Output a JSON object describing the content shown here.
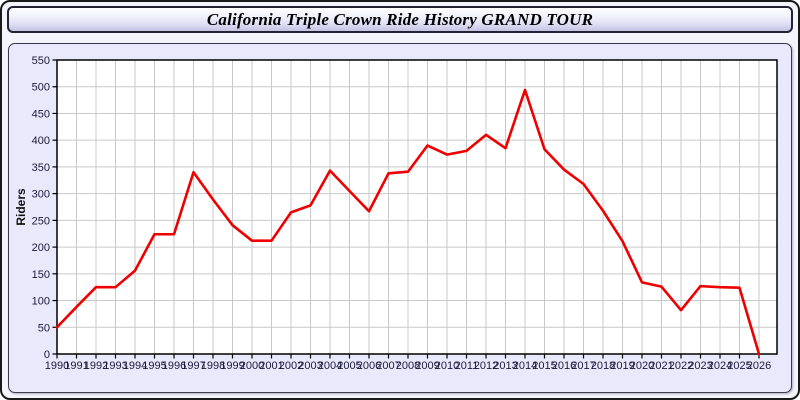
{
  "window": {
    "title": "California Triple Crown Ride History GRAND TOUR"
  },
  "colors": {
    "line": "#ee0000",
    "panel_bg": "#e9e9fb",
    "plot_bg": "#ffffff",
    "grid": "#c9c9c9",
    "axis": "#000000",
    "tick_label": "#1a1a3c"
  },
  "chart_data": {
    "type": "line",
    "title": "California Triple Crown Ride History GRAND TOUR",
    "xlabel": "",
    "ylabel": "Riders",
    "ylim": [
      0,
      550
    ],
    "ytick_step": 50,
    "grid": true,
    "legend": "none",
    "line_color": "#ee0000",
    "x": [
      1990,
      1991,
      1992,
      1993,
      1994,
      1995,
      1996,
      1997,
      1998,
      1999,
      2000,
      2001,
      2002,
      2003,
      2004,
      2005,
      2006,
      2007,
      2008,
      2009,
      2010,
      2011,
      2012,
      2013,
      2014,
      2015,
      2016,
      2017,
      2018,
      2019,
      2020,
      2021,
      2022,
      2023,
      2024,
      2025,
      2026
    ],
    "values": [
      50,
      88,
      125,
      125,
      156,
      224,
      224,
      340,
      289,
      241,
      212,
      212,
      265,
      278,
      343,
      305,
      267,
      338,
      341,
      390,
      373,
      380,
      410,
      385,
      494,
      383,
      345,
      318,
      268,
      211,
      134,
      126,
      82,
      127,
      125,
      124,
      0
    ]
  }
}
